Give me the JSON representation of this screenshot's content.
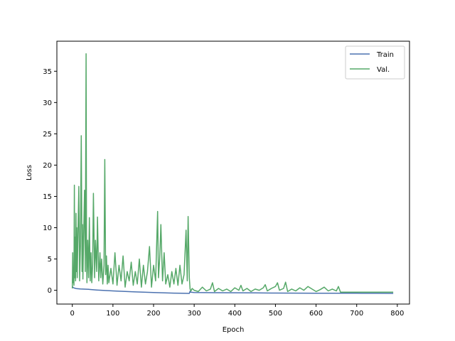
{
  "chart_data": {
    "type": "line",
    "title": "",
    "xlabel": "Epoch",
    "ylabel": "Loss",
    "xlim": [
      -38,
      830
    ],
    "ylim": [
      -2.2,
      39.8
    ],
    "xticks": [
      0,
      100,
      200,
      300,
      400,
      500,
      600,
      700,
      800
    ],
    "yticks": [
      0,
      5,
      10,
      15,
      20,
      25,
      30,
      35
    ],
    "grid": false,
    "legend": "top-right",
    "series": [
      {
        "name": "Train",
        "color": "#4c72b0",
        "x": [
          0,
          2,
          5,
          10,
          20,
          40,
          60,
          100,
          150,
          200,
          250,
          288,
          290,
          291,
          300,
          350,
          400,
          450,
          500,
          550,
          600,
          650,
          700,
          750,
          790
        ],
        "y": [
          0.6,
          0.45,
          0.35,
          0.28,
          0.22,
          0.15,
          0.05,
          -0.1,
          -0.25,
          -0.35,
          -0.45,
          -0.5,
          -0.15,
          -0.3,
          -0.35,
          -0.38,
          -0.4,
          -0.42,
          -0.44,
          -0.45,
          -0.46,
          -0.47,
          -0.48,
          -0.49,
          -0.5
        ]
      },
      {
        "name": "Val.",
        "color": "#55a868",
        "x": [
          0,
          1,
          2,
          3,
          4,
          5,
          6,
          7,
          8,
          9,
          10,
          11,
          12,
          14,
          16,
          18,
          20,
          22,
          24,
          25,
          26,
          28,
          30,
          32,
          34,
          35,
          36,
          38,
          40,
          42,
          44,
          46,
          48,
          50,
          52,
          55,
          57,
          60,
          62,
          65,
          68,
          70,
          72,
          75,
          78,
          80,
          82,
          84,
          86,
          88,
          90,
          95,
          100,
          105,
          110,
          115,
          120,
          125,
          130,
          135,
          140,
          145,
          150,
          155,
          160,
          165,
          170,
          175,
          180,
          185,
          190,
          195,
          200,
          205,
          210,
          212,
          215,
          218,
          222,
          226,
          230,
          235,
          240,
          245,
          250,
          255,
          260,
          265,
          270,
          275,
          280,
          283,
          285,
          288,
          290,
          292,
          295,
          300,
          310,
          320,
          330,
          340,
          345,
          350,
          360,
          370,
          380,
          390,
          400,
          410,
          415,
          420,
          430,
          440,
          450,
          460,
          470,
          475,
          480,
          490,
          500,
          505,
          510,
          520,
          525,
          530,
          540,
          550,
          560,
          570,
          580,
          590,
          600,
          610,
          620,
          630,
          640,
          650,
          655,
          660,
          670,
          680,
          700,
          720,
          740,
          760,
          780,
          790
        ],
        "y": [
          0.3,
          6.0,
          1.2,
          3.5,
          0.8,
          16.8,
          2.0,
          8.5,
          1.5,
          12.3,
          3.0,
          10.0,
          2.0,
          9.0,
          16.6,
          1.5,
          7.0,
          24.7,
          3.0,
          10.5,
          1.8,
          9.0,
          16.0,
          3.0,
          37.8,
          6.0,
          1.2,
          8.0,
          2.0,
          11.6,
          1.5,
          6.0,
          1.2,
          4.0,
          15.5,
          2.0,
          8.0,
          3.0,
          11.7,
          1.5,
          6.0,
          2.0,
          5.0,
          1.0,
          4.0,
          20.9,
          2.5,
          5.5,
          1.0,
          4.0,
          1.2,
          3.5,
          1.0,
          6.0,
          0.8,
          4.0,
          1.5,
          5.5,
          0.5,
          3.0,
          1.5,
          4.5,
          0.8,
          3.0,
          1.0,
          5.0,
          0.5,
          4.0,
          1.0,
          3.0,
          7.0,
          0.5,
          4.0,
          1.5,
          12.6,
          2.0,
          5.0,
          10.5,
          1.5,
          6.0,
          1.0,
          2.5,
          0.5,
          3.0,
          1.0,
          3.5,
          0.8,
          4.0,
          1.0,
          2.5,
          9.6,
          1.5,
          11.8,
          2.0,
          0.2,
          -0.1,
          0.3,
          0.0,
          -0.2,
          0.5,
          -0.1,
          0.2,
          1.2,
          -0.2,
          0.3,
          -0.1,
          0.2,
          -0.2,
          0.4,
          0.0,
          0.8,
          -0.1,
          0.3,
          -0.2,
          0.2,
          0.0,
          0.4,
          0.9,
          -0.1,
          0.3,
          0.6,
          1.2,
          0.0,
          0.3,
          1.3,
          -0.2,
          0.2,
          -0.1,
          0.4,
          0.0,
          0.6,
          0.2,
          -0.2,
          0.1,
          0.5,
          -0.1,
          0.2,
          -0.1,
          0.6,
          -0.3,
          -0.3,
          -0.3,
          -0.3,
          -0.3,
          -0.3,
          -0.3,
          -0.3,
          -0.3
        ]
      }
    ]
  }
}
